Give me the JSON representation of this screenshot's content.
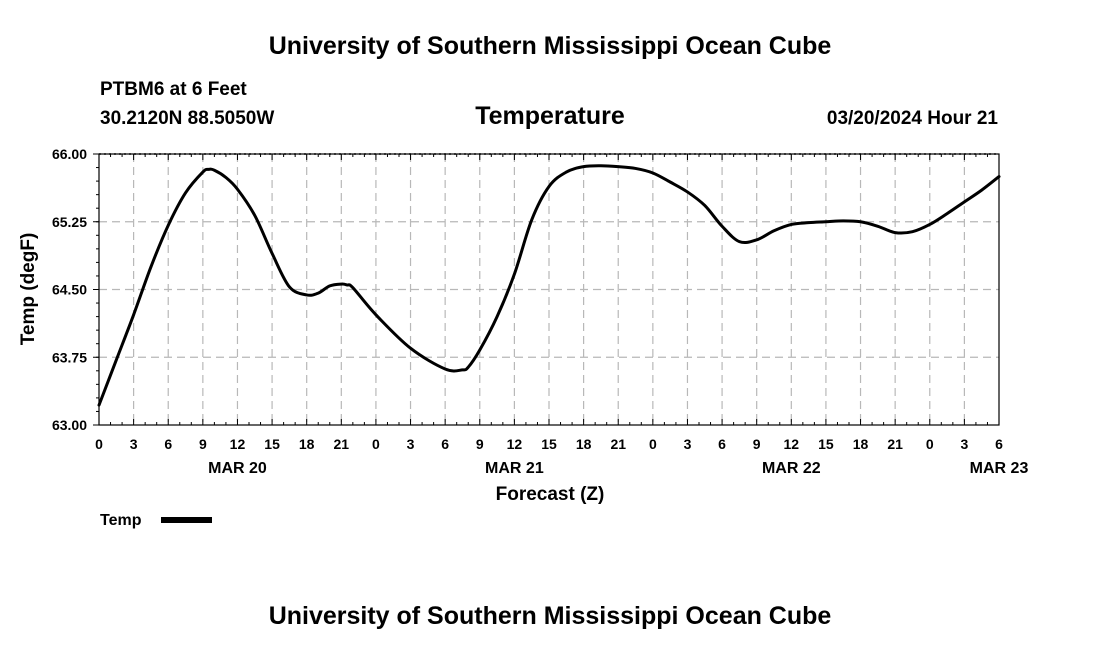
{
  "header": {
    "title_top": "University of Southern Mississippi Ocean Cube",
    "station": "PTBM6 at 6 Feet",
    "coords": "30.2120N  88.5050W",
    "variable": "Temperature",
    "timestamp": "03/20/2024 Hour 21"
  },
  "footer": {
    "title_bottom": "University of Southern Mississippi Ocean Cube"
  },
  "legend": {
    "label": "Temp"
  },
  "chart_data": {
    "type": "line",
    "title": "Temperature",
    "xlabel": "Forecast (Z)",
    "ylabel": "Temp (degF)",
    "xlim": [
      0,
      78
    ],
    "ylim": [
      63.0,
      66.0
    ],
    "yticks": [
      63.0,
      63.75,
      64.5,
      65.25,
      66.0
    ],
    "ytick_labels": [
      "63.00",
      "63.75",
      "64.50",
      "65.25",
      "66.00"
    ],
    "xtick_labels": [
      "0",
      "3",
      "6",
      "9",
      "12",
      "15",
      "18",
      "21",
      "0",
      "3",
      "6",
      "9",
      "12",
      "15",
      "18",
      "21",
      "0",
      "3",
      "6",
      "9",
      "12",
      "15",
      "18",
      "21",
      "0",
      "3",
      "6"
    ],
    "date_labels": [
      {
        "hour": 12,
        "label": "MAR 20"
      },
      {
        "hour": 36,
        "label": "MAR 21"
      },
      {
        "hour": 60,
        "label": "MAR 22"
      },
      {
        "hour": 78,
        "label": "MAR 23"
      }
    ],
    "grid": true,
    "series": [
      {
        "name": "Temp",
        "color": "#000000",
        "x": [
          0,
          1.5,
          3,
          4.5,
          6,
          7.5,
          9,
          9.5,
          10,
          11,
          12,
          13.5,
          15,
          16.5,
          18,
          19,
          20,
          21,
          21.5,
          22,
          24,
          27,
          30,
          31.5,
          32,
          33,
          34.5,
          36,
          37.5,
          39,
          40.5,
          42,
          43.5,
          45,
          46.5,
          48,
          49.5,
          51,
          52.5,
          54,
          55.5,
          57,
          58.5,
          60,
          61.5,
          63,
          64.5,
          66,
          67.5,
          69,
          70.5,
          72,
          73.5,
          75,
          76.5,
          78
        ],
        "values": [
          63.22,
          63.72,
          64.22,
          64.75,
          65.21,
          65.57,
          65.8,
          65.83,
          65.82,
          65.74,
          65.61,
          65.32,
          64.9,
          64.53,
          64.44,
          64.46,
          64.54,
          64.56,
          64.55,
          64.52,
          64.22,
          63.85,
          63.62,
          63.61,
          63.64,
          63.83,
          64.2,
          64.67,
          65.27,
          65.64,
          65.8,
          65.86,
          65.87,
          65.86,
          65.84,
          65.79,
          65.69,
          65.58,
          65.43,
          65.2,
          65.03,
          65.05,
          65.15,
          65.22,
          65.24,
          65.25,
          65.26,
          65.25,
          65.2,
          65.13,
          65.14,
          65.22,
          65.34,
          65.47,
          65.6,
          65.75
        ]
      }
    ]
  }
}
